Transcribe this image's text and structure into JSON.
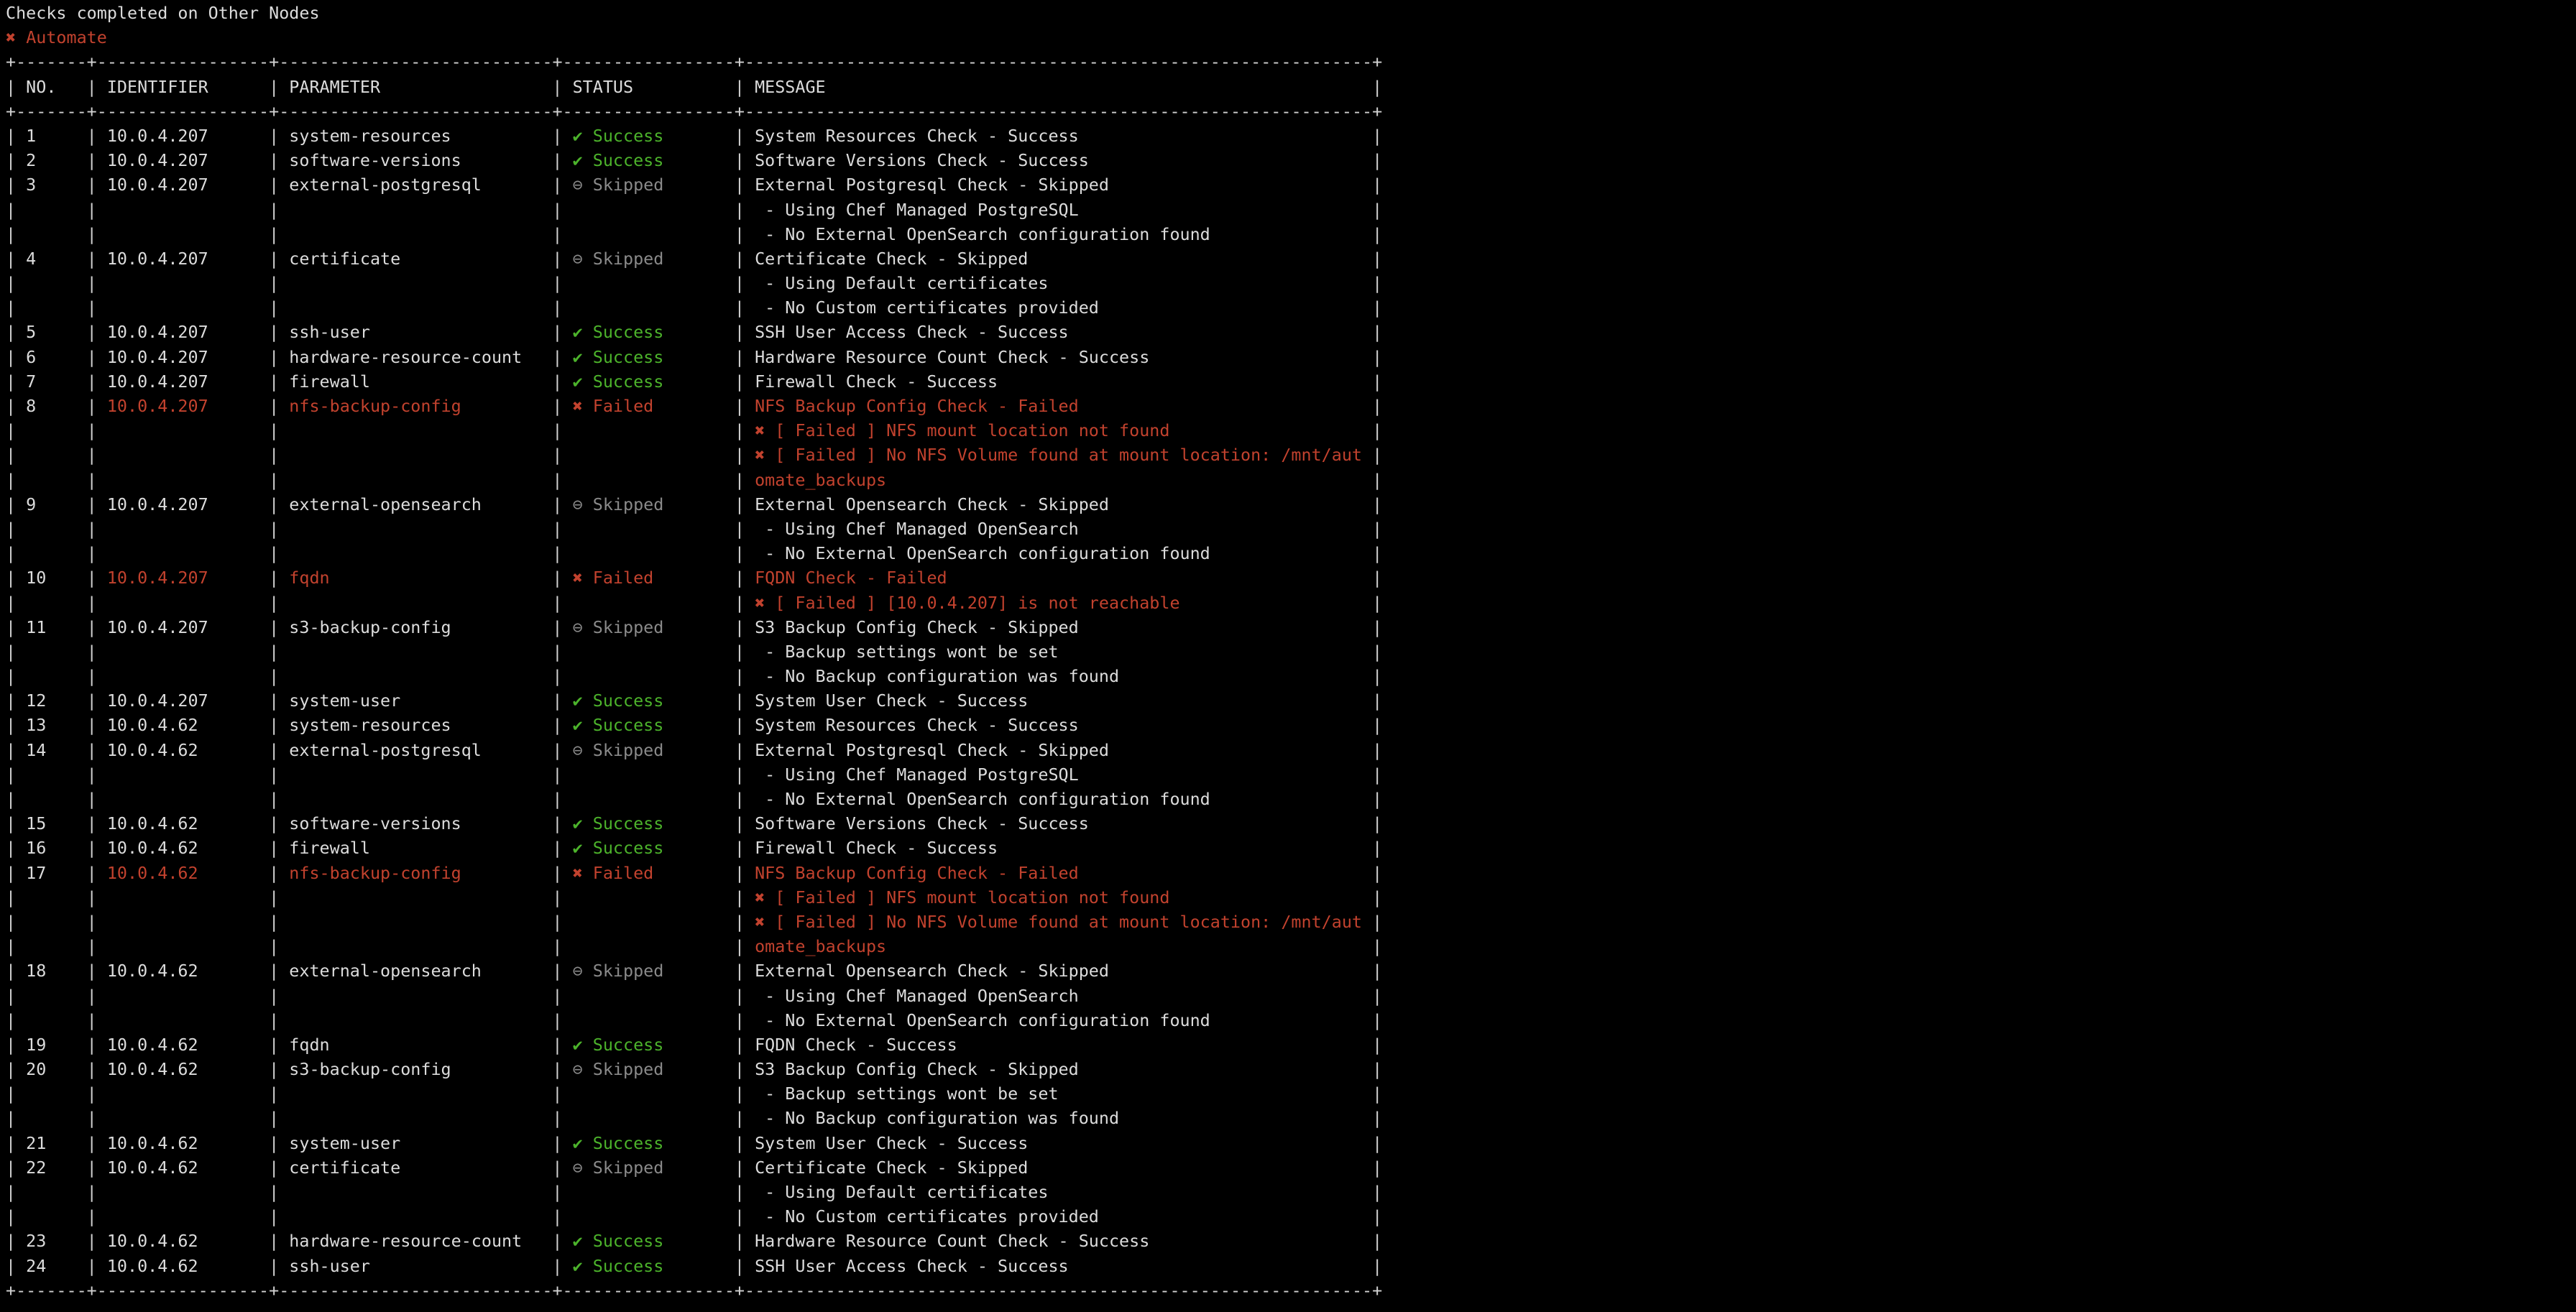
{
  "terminal": {
    "title": "Checks completed on Other Nodes",
    "failed_banner": {
      "icon": "✖",
      "label": "Automate"
    }
  },
  "colors": {
    "background": "#000000",
    "foreground": "#dcdcdc",
    "success_green": "#4cb32b",
    "failed_red": "#c2422e",
    "skipped_gray": "#8a8a8a"
  },
  "status_icons": {
    "success": "✔",
    "skipped": "⊖",
    "failed": "✖"
  },
  "table": {
    "columns": [
      "NO.",
      "IDENTIFIER",
      "PARAMETER",
      "STATUS",
      "MESSAGE"
    ],
    "statuses": {
      "success": "Success",
      "skipped": "Skipped",
      "failed": "Failed"
    },
    "rows": [
      {
        "no": 1,
        "identifier": "10.0.4.207",
        "parameter": "system-resources",
        "status": "success",
        "message_lines": [
          "System Resources Check - Success"
        ]
      },
      {
        "no": 2,
        "identifier": "10.0.4.207",
        "parameter": "software-versions",
        "status": "success",
        "message_lines": [
          "Software Versions Check - Success"
        ]
      },
      {
        "no": 3,
        "identifier": "10.0.4.207",
        "parameter": "external-postgresql",
        "status": "skipped",
        "message_lines": [
          "External Postgresql Check - Skipped",
          " - Using Chef Managed PostgreSQL",
          " - No External OpenSearch configuration found"
        ]
      },
      {
        "no": 4,
        "identifier": "10.0.4.207",
        "parameter": "certificate",
        "status": "skipped",
        "message_lines": [
          "Certificate Check - Skipped",
          " - Using Default certificates",
          " - No Custom certificates provided"
        ]
      },
      {
        "no": 5,
        "identifier": "10.0.4.207",
        "parameter": "ssh-user",
        "status": "success",
        "message_lines": [
          "SSH User Access Check - Success"
        ]
      },
      {
        "no": 6,
        "identifier": "10.0.4.207",
        "parameter": "hardware-resource-count",
        "status": "success",
        "message_lines": [
          "Hardware Resource Count Check - Success"
        ]
      },
      {
        "no": 7,
        "identifier": "10.0.4.207",
        "parameter": "firewall",
        "status": "success",
        "message_lines": [
          "Firewall Check - Success"
        ]
      },
      {
        "no": 8,
        "identifier": "10.0.4.207",
        "parameter": "nfs-backup-config",
        "status": "failed",
        "message_lines": [
          "NFS Backup Config Check - Failed",
          "✖ [ Failed ] NFS mount location not found",
          "✖ [ Failed ] No NFS Volume found at mount location: /mnt/aut",
          "omate_backups"
        ]
      },
      {
        "no": 9,
        "identifier": "10.0.4.207",
        "parameter": "external-opensearch",
        "status": "skipped",
        "message_lines": [
          "External Opensearch Check - Skipped",
          " - Using Chef Managed OpenSearch",
          " - No External OpenSearch configuration found"
        ]
      },
      {
        "no": 10,
        "identifier": "10.0.4.207",
        "parameter": "fqdn",
        "status": "failed",
        "message_lines": [
          "FQDN Check - Failed",
          "✖ [ Failed ] [10.0.4.207] is not reachable"
        ]
      },
      {
        "no": 11,
        "identifier": "10.0.4.207",
        "parameter": "s3-backup-config",
        "status": "skipped",
        "message_lines": [
          "S3 Backup Config Check - Skipped",
          " - Backup settings wont be set",
          " - No Backup configuration was found"
        ]
      },
      {
        "no": 12,
        "identifier": "10.0.4.207",
        "parameter": "system-user",
        "status": "success",
        "message_lines": [
          "System User Check - Success"
        ]
      },
      {
        "no": 13,
        "identifier": "10.0.4.62",
        "parameter": "system-resources",
        "status": "success",
        "message_lines": [
          "System Resources Check - Success"
        ]
      },
      {
        "no": 14,
        "identifier": "10.0.4.62",
        "parameter": "external-postgresql",
        "status": "skipped",
        "message_lines": [
          "External Postgresql Check - Skipped",
          " - Using Chef Managed PostgreSQL",
          " - No External OpenSearch configuration found"
        ]
      },
      {
        "no": 15,
        "identifier": "10.0.4.62",
        "parameter": "software-versions",
        "status": "success",
        "message_lines": [
          "Software Versions Check - Success"
        ]
      },
      {
        "no": 16,
        "identifier": "10.0.4.62",
        "parameter": "firewall",
        "status": "success",
        "message_lines": [
          "Firewall Check - Success"
        ]
      },
      {
        "no": 17,
        "identifier": "10.0.4.62",
        "parameter": "nfs-backup-config",
        "status": "failed",
        "message_lines": [
          "NFS Backup Config Check - Failed",
          "✖ [ Failed ] NFS mount location not found",
          "✖ [ Failed ] No NFS Volume found at mount location: /mnt/aut",
          "omate_backups"
        ]
      },
      {
        "no": 18,
        "identifier": "10.0.4.62",
        "parameter": "external-opensearch",
        "status": "skipped",
        "message_lines": [
          "External Opensearch Check - Skipped",
          " - Using Chef Managed OpenSearch",
          " - No External OpenSearch configuration found"
        ]
      },
      {
        "no": 19,
        "identifier": "10.0.4.62",
        "parameter": "fqdn",
        "status": "success",
        "message_lines": [
          "FQDN Check - Success"
        ]
      },
      {
        "no": 20,
        "identifier": "10.0.4.62",
        "parameter": "s3-backup-config",
        "status": "skipped",
        "message_lines": [
          "S3 Backup Config Check - Skipped",
          " - Backup settings wont be set",
          " - No Backup configuration was found"
        ]
      },
      {
        "no": 21,
        "identifier": "10.0.4.62",
        "parameter": "system-user",
        "status": "success",
        "message_lines": [
          "System User Check - Success"
        ]
      },
      {
        "no": 22,
        "identifier": "10.0.4.62",
        "parameter": "certificate",
        "status": "skipped",
        "message_lines": [
          "Certificate Check - Skipped",
          " - Using Default certificates",
          " - No Custom certificates provided"
        ]
      },
      {
        "no": 23,
        "identifier": "10.0.4.62",
        "parameter": "hardware-resource-count",
        "status": "success",
        "message_lines": [
          "Hardware Resource Count Check - Success"
        ]
      },
      {
        "no": 24,
        "identifier": "10.0.4.62",
        "parameter": "ssh-user",
        "status": "success",
        "message_lines": [
          "SSH User Access Check - Success"
        ]
      }
    ]
  }
}
